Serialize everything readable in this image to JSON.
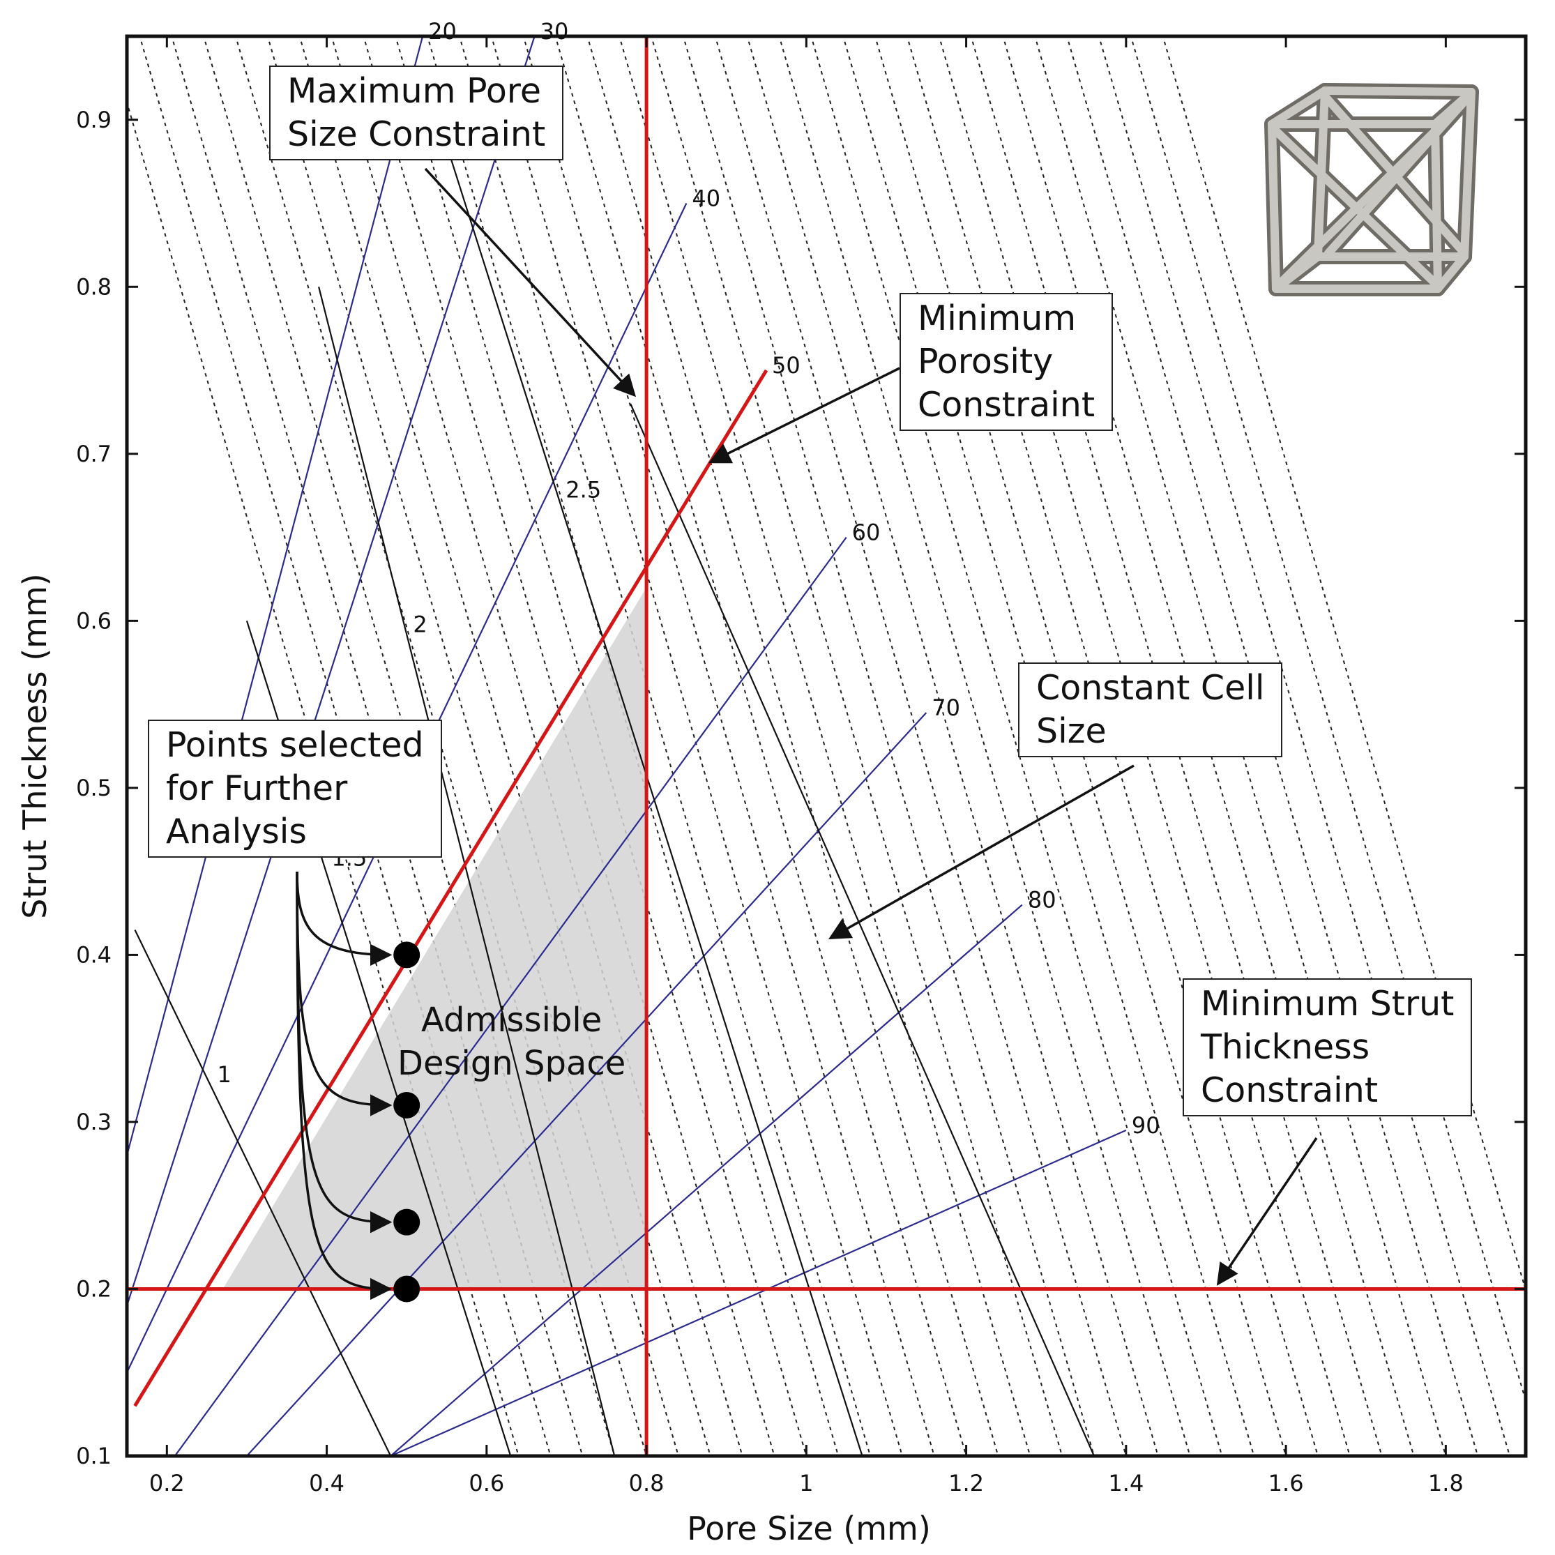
{
  "chart_data": {
    "type": "line",
    "xlabel": "Pore Size (mm)",
    "ylabel": "Strut Thickness (mm)",
    "xlim": [
      0.15,
      1.9
    ],
    "ylim": [
      0.1,
      0.95
    ],
    "xticks": [
      "0.2",
      "0.4",
      "0.6",
      "0.8",
      "1",
      "1.2",
      "1.4",
      "1.6",
      "1.8"
    ],
    "yticks": [
      "0.1",
      "0.2",
      "0.3",
      "0.4",
      "0.5",
      "0.6",
      "0.7",
      "0.8",
      "0.9"
    ],
    "porosity_lines": [
      {
        "label": "20",
        "x": [
          0.15,
          0.52
        ],
        "y": [
          0.28,
          0.95
        ]
      },
      {
        "label": "30",
        "x": [
          0.15,
          0.66
        ],
        "y": [
          0.19,
          0.95
        ]
      },
      {
        "label": "40",
        "x": [
          0.15,
          0.85
        ],
        "y": [
          0.15,
          0.85
        ]
      },
      {
        "label": "50",
        "x": [
          0.16,
          0.95
        ],
        "y": [
          0.13,
          0.75
        ]
      },
      {
        "label": "60",
        "x": [
          0.21,
          1.05
        ],
        "y": [
          0.1,
          0.65
        ]
      },
      {
        "label": "70",
        "x": [
          0.3,
          1.15
        ],
        "y": [
          0.1,
          0.545
        ]
      },
      {
        "label": "80",
        "x": [
          0.48,
          1.27
        ],
        "y": [
          0.1,
          0.43
        ]
      },
      {
        "label": "90",
        "x": [
          0.48,
          1.4
        ],
        "y": [
          0.1,
          0.295
        ]
      }
    ],
    "cell_size_lines": [
      {
        "label": "1",
        "x": [
          0.16,
          0.48
        ],
        "y": [
          0.415,
          0.1
        ]
      },
      {
        "label": "1.5",
        "x": [
          0.3,
          0.63
        ],
        "y": [
          0.6,
          0.1
        ]
      },
      {
        "label": "2",
        "x": [
          0.39,
          0.76
        ],
        "y": [
          0.8,
          0.1
        ]
      },
      {
        "label": "2.5",
        "x": [
          0.53,
          1.07
        ],
        "y": [
          0.915,
          0.1
        ]
      },
      {
        "label": "",
        "x": [
          0.78,
          1.36
        ],
        "y": [
          0.73,
          0.1
        ]
      }
    ],
    "constraints": {
      "maximum_pore_size": 0.8,
      "minimum_strut_thickness": 0.2,
      "minimum_porosity": "50"
    },
    "admissible_region": {
      "x": [
        0.27,
        0.8,
        0.8,
        0.8
      ],
      "y": [
        0.2,
        0.62,
        0.2,
        0.2
      ]
    },
    "selected_points": {
      "x": [
        0.5,
        0.5,
        0.5,
        0.5
      ],
      "y": [
        0.4,
        0.31,
        0.24,
        0.2
      ]
    },
    "annotations": {
      "max_pore": [
        "Maximum Pore",
        "Size Constraint"
      ],
      "min_porosity": [
        "Minimum",
        "Porosity",
        "Constraint"
      ],
      "cell_size": [
        "Constant Cell",
        "Size"
      ],
      "points": [
        "Points selected",
        "for Further",
        "Analysis"
      ],
      "min_strut": [
        "Minimum Strut",
        "Thickness",
        "Constraint"
      ],
      "region": [
        "Admissible",
        "Design Space"
      ]
    }
  },
  "colors": {
    "porosity_line": "#2b2b8f",
    "cell_line": "#111111",
    "dotted_line": "#222222",
    "constraint": "#d41616",
    "region_fill": "#d3d3d3",
    "axis": "#111111"
  },
  "icons": {
    "inset": "lattice-unit-cell-icon"
  }
}
